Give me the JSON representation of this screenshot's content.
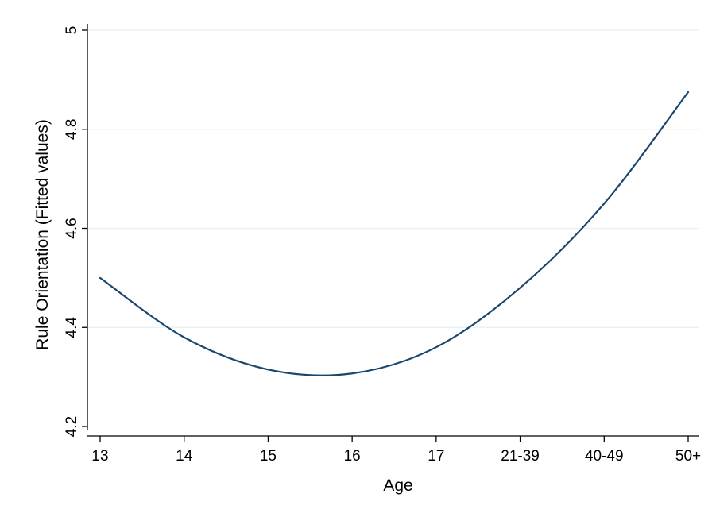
{
  "chart_data": {
    "type": "line",
    "title": "",
    "xlabel": "Age",
    "ylabel": "Rule Orientation (Fitted values)",
    "categories": [
      "13",
      "14",
      "15",
      "16",
      "17",
      "21-39",
      "40-49",
      "50+"
    ],
    "x": [
      1,
      2,
      3,
      4,
      5,
      6,
      7,
      8
    ],
    "ylim": [
      4.2,
      5.0
    ],
    "yticks": [
      4.2,
      4.4,
      4.6,
      4.8,
      5
    ],
    "ytick_labels": [
      "4.2",
      "4.4",
      "4.6",
      "4.8",
      "5"
    ],
    "grid": true,
    "legend": "none",
    "series": [
      {
        "values": [
          4.5,
          4.38,
          4.315,
          4.307,
          4.36,
          4.48,
          4.65,
          4.875
        ],
        "color": "#1a476f"
      }
    ]
  },
  "colors": {
    "line": "#1a476f",
    "grid": "#eaf2f3",
    "axis": "#000000",
    "background": "#ffffff"
  }
}
